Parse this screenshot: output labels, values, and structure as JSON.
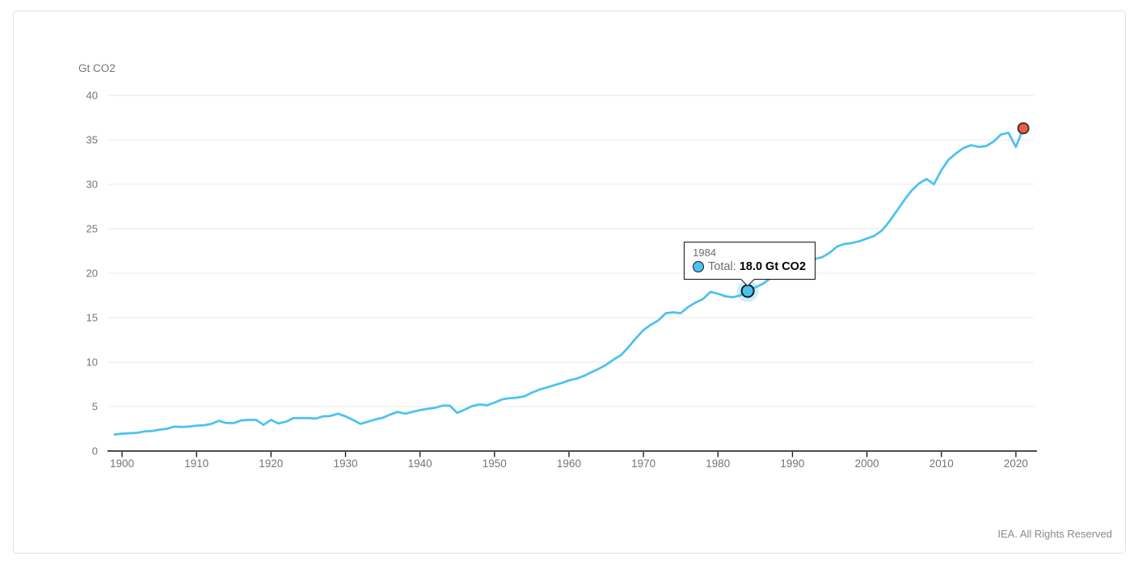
{
  "page": {
    "footer": "IEA. All Rights Reserved"
  },
  "chart_data": {
    "type": "line",
    "title": "",
    "unit_label": "Gt CO2",
    "xlabel": "",
    "ylabel": "Gt CO2",
    "xlim": [
      1899,
      2022
    ],
    "ylim": [
      0,
      40
    ],
    "y_ticks": [
      0,
      5,
      10,
      15,
      20,
      25,
      30,
      35,
      40
    ],
    "x_ticks": [
      1900,
      1910,
      1920,
      1930,
      1940,
      1950,
      1960,
      1970,
      1980,
      1990,
      2000,
      2010,
      2020
    ],
    "grid": "horizontal-only",
    "legend": "none",
    "x": [
      1899,
      1900,
      1901,
      1902,
      1903,
      1904,
      1905,
      1906,
      1907,
      1908,
      1909,
      1910,
      1911,
      1912,
      1913,
      1914,
      1915,
      1916,
      1917,
      1918,
      1919,
      1920,
      1921,
      1922,
      1923,
      1924,
      1925,
      1926,
      1927,
      1928,
      1929,
      1930,
      1931,
      1932,
      1933,
      1934,
      1935,
      1936,
      1937,
      1938,
      1939,
      1940,
      1941,
      1942,
      1943,
      1944,
      1945,
      1946,
      1947,
      1948,
      1949,
      1950,
      1951,
      1952,
      1953,
      1954,
      1955,
      1956,
      1957,
      1958,
      1959,
      1960,
      1961,
      1962,
      1963,
      1964,
      1965,
      1966,
      1967,
      1968,
      1969,
      1970,
      1971,
      1972,
      1973,
      1974,
      1975,
      1976,
      1977,
      1978,
      1979,
      1980,
      1981,
      1982,
      1983,
      1984,
      1985,
      1986,
      1987,
      1988,
      1989,
      1990,
      1991,
      1992,
      1993,
      1994,
      1995,
      1996,
      1997,
      1998,
      1999,
      2000,
      2001,
      2002,
      2003,
      2004,
      2005,
      2006,
      2007,
      2008,
      2009,
      2010,
      2011,
      2012,
      2013,
      2014,
      2015,
      2016,
      2017,
      2018,
      2019,
      2020,
      2021
    ],
    "series": [
      {
        "name": "Total",
        "color": "#4dc2ef",
        "values": [
          1.85,
          1.95,
          2.0,
          2.05,
          2.2,
          2.25,
          2.4,
          2.5,
          2.75,
          2.7,
          2.75,
          2.85,
          2.9,
          3.05,
          3.4,
          3.15,
          3.15,
          3.45,
          3.5,
          3.5,
          2.95,
          3.5,
          3.1,
          3.3,
          3.7,
          3.7,
          3.7,
          3.65,
          3.9,
          3.95,
          4.2,
          3.9,
          3.5,
          3.05,
          3.3,
          3.55,
          3.75,
          4.1,
          4.4,
          4.2,
          4.4,
          4.6,
          4.75,
          4.85,
          5.1,
          5.1,
          4.3,
          4.65,
          5.05,
          5.25,
          5.15,
          5.45,
          5.8,
          5.95,
          6.0,
          6.15,
          6.55,
          6.9,
          7.15,
          7.4,
          7.65,
          7.95,
          8.15,
          8.45,
          8.85,
          9.25,
          9.7,
          10.3,
          10.8,
          11.7,
          12.7,
          13.6,
          14.2,
          14.7,
          15.5,
          15.6,
          15.5,
          16.2,
          16.7,
          17.1,
          17.9,
          17.7,
          17.4,
          17.3,
          17.5,
          18.0,
          18.4,
          18.8,
          19.4,
          20.1,
          20.7,
          21.2,
          21.4,
          21.5,
          21.6,
          21.8,
          22.3,
          23.0,
          23.3,
          23.4,
          23.6,
          23.9,
          24.2,
          24.8,
          25.8,
          27.0,
          28.2,
          29.3,
          30.1,
          30.6,
          30.0,
          31.6,
          32.8,
          33.5,
          34.1,
          34.4,
          34.2,
          34.3,
          34.8,
          35.6,
          35.8,
          34.2,
          36.3
        ]
      }
    ],
    "tooltip": {
      "year": 1984,
      "series_label": "Total:",
      "value": 18.0,
      "value_label": "18.0 Gt CO2",
      "marker_color": "#4dc2ef"
    },
    "end_marker": {
      "year": 2021,
      "value": 36.3,
      "color": "#f05d3d"
    },
    "colors": {
      "line": "#4dc2ef",
      "grid": "#e8e8e8",
      "axis": "#111111",
      "tick_label": "#757575",
      "end_point": "#f05d3d"
    }
  }
}
